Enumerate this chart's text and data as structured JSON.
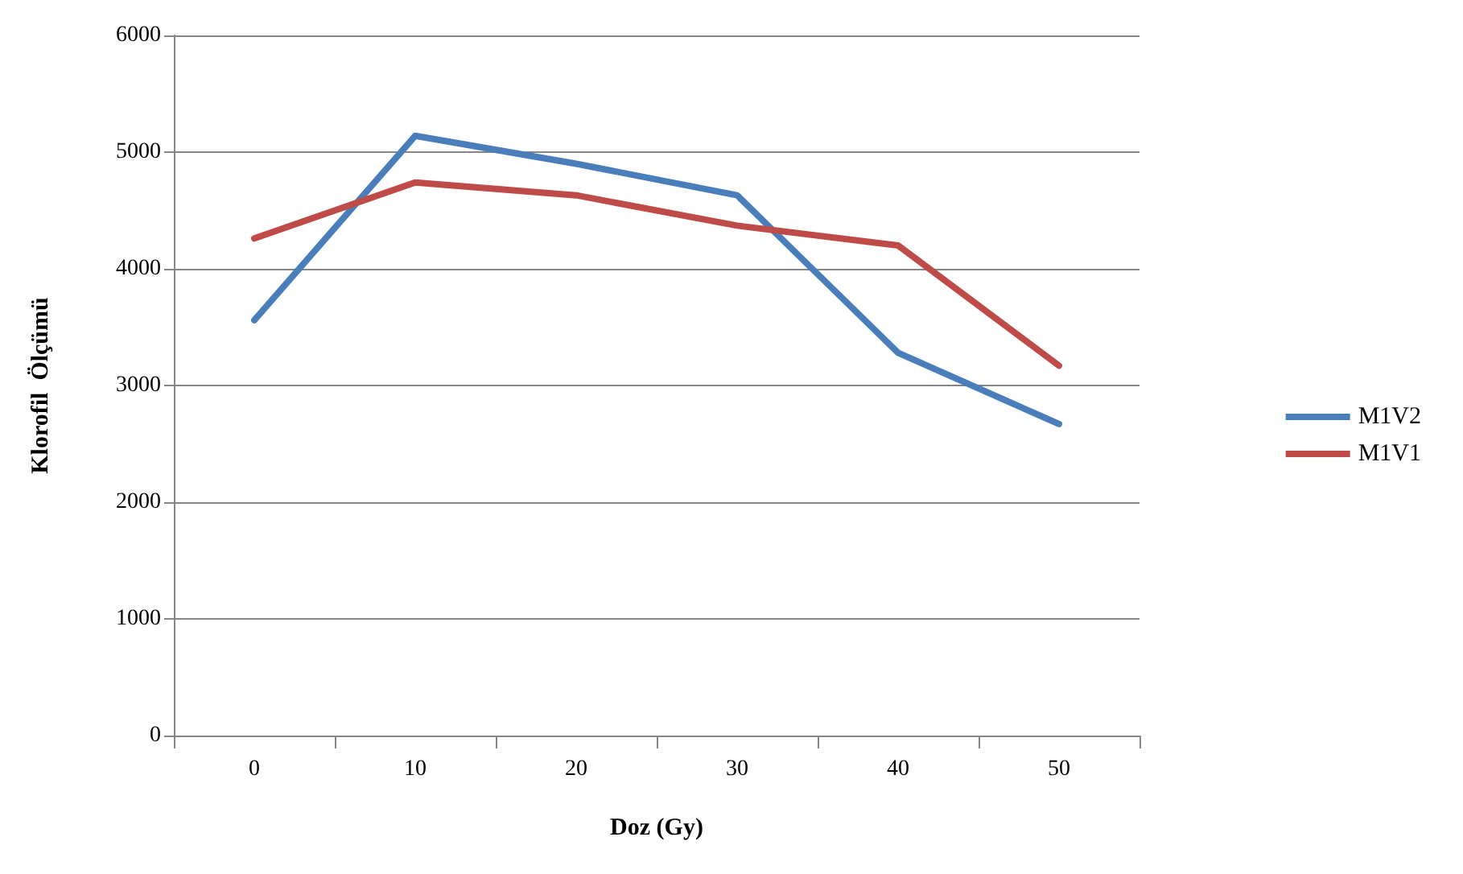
{
  "chart_data": {
    "type": "line",
    "xlabel": "Doz (Gy)",
    "ylabel": "Klorofil  Ölçümü",
    "categories": [
      "0",
      "10",
      "20",
      "30",
      "40",
      "50"
    ],
    "series": [
      {
        "name": "M1V2",
        "color": "#4a7ebb",
        "values": [
          3560,
          5140,
          4900,
          4630,
          3280,
          2670
        ]
      },
      {
        "name": "M1V1",
        "color": "#be4b48",
        "values": [
          4260,
          4740,
          4630,
          4370,
          4200,
          3170
        ]
      }
    ],
    "ylim": [
      0,
      6000
    ],
    "yticks": [
      0,
      1000,
      2000,
      3000,
      4000,
      5000,
      6000
    ],
    "grid": "y",
    "legend": "right",
    "marker": "none",
    "line_style": "solid"
  }
}
